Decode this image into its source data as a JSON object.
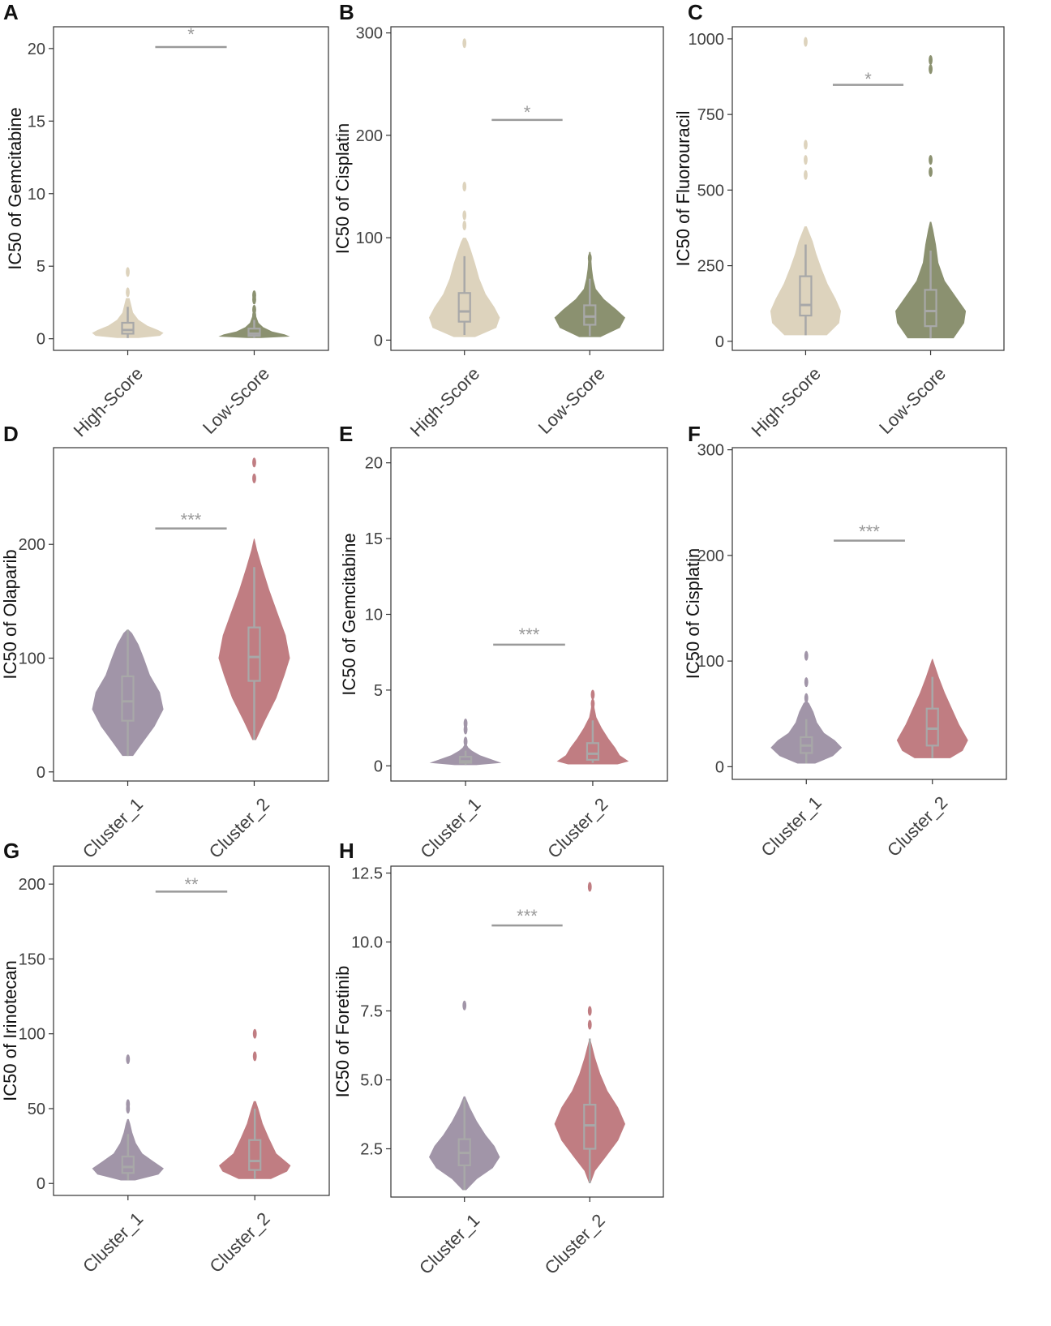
{
  "colors": {
    "high_score": "#ddd3bd",
    "low_score": "#8b9170",
    "cluster_1": "#a195a8",
    "cluster_2": "#c07d82",
    "box": "#a8a8a8",
    "sig": "#9a9a9a"
  },
  "chart_data": [
    {
      "panel": "A",
      "type": "violin",
      "title": "",
      "ylabel": "IC50 of Gemcitabine",
      "xlabel": "",
      "ylim": [
        -0.8,
        21.5
      ],
      "yticks": [
        0,
        5,
        10,
        15,
        20
      ],
      "tick_labels": [
        "0",
        "5",
        "10",
        "15",
        "20"
      ],
      "categories": [
        "High-Score",
        "Low-Score"
      ],
      "significance": "*",
      "sig_y": 20.1,
      "sig_label_y": 21.0,
      "groups": [
        {
          "name": "High-Score",
          "color_key": "high_score",
          "min": 0.05,
          "q1": 0.35,
          "median": 0.6,
          "q3": 1.1,
          "max": 2.2,
          "outliers": [
            3.2,
            4.6
          ],
          "profile": [
            [
              0.05,
              0.3
            ],
            [
              0.2,
              0.9
            ],
            [
              0.4,
              1.0
            ],
            [
              0.6,
              0.85
            ],
            [
              0.9,
              0.55
            ],
            [
              1.3,
              0.3
            ],
            [
              1.8,
              0.15
            ],
            [
              2.3,
              0.1
            ],
            [
              2.8,
              0.05
            ]
          ]
        },
        {
          "name": "Low-Score",
          "color_key": "low_score",
          "min": 0.05,
          "q1": 0.2,
          "median": 0.35,
          "q3": 0.7,
          "max": 1.3,
          "outliers": [
            1.6,
            2.0,
            2.7,
            3.0
          ],
          "profile": [
            [
              0.05,
              0.2
            ],
            [
              0.15,
              1.0
            ],
            [
              0.3,
              0.85
            ],
            [
              0.5,
              0.5
            ],
            [
              0.8,
              0.25
            ],
            [
              1.1,
              0.12
            ],
            [
              1.5,
              0.06
            ],
            [
              1.8,
              0.03
            ]
          ]
        }
      ]
    },
    {
      "panel": "B",
      "type": "violin",
      "title": "",
      "ylabel": "IC50 of Cisplatin",
      "xlabel": "",
      "ylim": [
        -10,
        306
      ],
      "yticks": [
        0,
        100,
        200,
        300
      ],
      "tick_labels": [
        "0",
        "100",
        "200",
        "300"
      ],
      "categories": [
        "High-Score",
        "Low-Score"
      ],
      "significance": "*",
      "sig_y": 215,
      "sig_label_y": 223,
      "groups": [
        {
          "name": "High-Score",
          "color_key": "high_score",
          "min": 5,
          "q1": 18,
          "median": 28,
          "q3": 46,
          "max": 82,
          "outliers": [
            112,
            122,
            150,
            290
          ],
          "profile": [
            [
              3,
              0.3
            ],
            [
              12,
              0.9
            ],
            [
              22,
              1.0
            ],
            [
              32,
              0.85
            ],
            [
              45,
              0.6
            ],
            [
              60,
              0.42
            ],
            [
              75,
              0.3
            ],
            [
              88,
              0.18
            ],
            [
              96,
              0.1
            ],
            [
              100,
              0.04
            ]
          ]
        },
        {
          "name": "Low-Score",
          "color_key": "low_score",
          "min": 4,
          "q1": 15,
          "median": 23,
          "q3": 34,
          "max": 60,
          "outliers": [
            70,
            80
          ],
          "profile": [
            [
              3,
              0.3
            ],
            [
              12,
              0.85
            ],
            [
              22,
              1.0
            ],
            [
              30,
              0.75
            ],
            [
              40,
              0.4
            ],
            [
              50,
              0.17
            ],
            [
              60,
              0.1
            ],
            [
              70,
              0.06
            ],
            [
              80,
              0.04
            ],
            [
              86,
              0.02
            ]
          ]
        }
      ]
    },
    {
      "panel": "C",
      "type": "violin",
      "title": "",
      "ylabel": "IC50 of Fluorouracil",
      "xlabel": "",
      "ylim": [
        -30,
        1040
      ],
      "yticks": [
        0,
        250,
        500,
        750,
        1000
      ],
      "tick_labels": [
        "0",
        "250",
        "500",
        "750",
        "1000"
      ],
      "categories": [
        "High-Score",
        "Low-Score"
      ],
      "significance": "*",
      "sig_y": 848,
      "sig_label_y": 868,
      "groups": [
        {
          "name": "High-Score",
          "color_key": "high_score",
          "min": 20,
          "q1": 85,
          "median": 120,
          "q3": 215,
          "max": 320,
          "outliers": [
            550,
            600,
            650,
            990
          ],
          "profile": [
            [
              20,
              0.6
            ],
            [
              60,
              0.95
            ],
            [
              100,
              1.0
            ],
            [
              140,
              0.85
            ],
            [
              190,
              0.62
            ],
            [
              240,
              0.45
            ],
            [
              290,
              0.3
            ],
            [
              330,
              0.2
            ],
            [
              360,
              0.1
            ],
            [
              380,
              0.03
            ]
          ]
        },
        {
          "name": "Low-Score",
          "color_key": "low_score",
          "min": 10,
          "q1": 50,
          "median": 100,
          "q3": 170,
          "max": 300,
          "outliers": [
            560,
            600,
            900,
            930
          ],
          "profile": [
            [
              10,
              0.65
            ],
            [
              60,
              0.95
            ],
            [
              100,
              1.0
            ],
            [
              150,
              0.7
            ],
            [
              200,
              0.4
            ],
            [
              260,
              0.22
            ],
            [
              320,
              0.15
            ],
            [
              370,
              0.07
            ],
            [
              395,
              0.02
            ]
          ]
        }
      ]
    },
    {
      "panel": "D",
      "type": "violin",
      "title": "",
      "ylabel": "IC50 of Olaparib",
      "xlabel": "",
      "ylim": [
        -8,
        285
      ],
      "yticks": [
        0,
        100,
        200
      ],
      "tick_labels": [
        "0",
        "100",
        "200"
      ],
      "categories": [
        "Cluster_1",
        "Cluster_2"
      ],
      "significance": "***",
      "sig_y": 214,
      "sig_label_y": 222,
      "groups": [
        {
          "name": "Cluster_1",
          "color_key": "cluster_1",
          "min": 14,
          "q1": 45,
          "median": 62,
          "q3": 84,
          "max": 125,
          "outliers": [],
          "profile": [
            [
              14,
              0.15
            ],
            [
              25,
              0.4
            ],
            [
              40,
              0.75
            ],
            [
              55,
              1.0
            ],
            [
              70,
              0.9
            ],
            [
              85,
              0.62
            ],
            [
              100,
              0.45
            ],
            [
              112,
              0.3
            ],
            [
              122,
              0.12
            ],
            [
              125,
              0.02
            ]
          ]
        },
        {
          "name": "Cluster_2",
          "color_key": "cluster_2",
          "min": 28,
          "q1": 80,
          "median": 101,
          "q3": 127,
          "max": 180,
          "outliers": [
            258,
            272
          ],
          "profile": [
            [
              28,
              0.05
            ],
            [
              45,
              0.3
            ],
            [
              65,
              0.62
            ],
            [
              85,
              0.85
            ],
            [
              100,
              1.0
            ],
            [
              120,
              0.88
            ],
            [
              140,
              0.65
            ],
            [
              160,
              0.42
            ],
            [
              180,
              0.22
            ],
            [
              195,
              0.08
            ],
            [
              205,
              0.01
            ]
          ]
        }
      ]
    },
    {
      "panel": "E",
      "type": "violin",
      "title": "",
      "ylabel": "IC50 of Gemcitabine",
      "xlabel": "",
      "ylim": [
        -1,
        21
      ],
      "yticks": [
        0,
        5,
        10,
        15,
        20
      ],
      "tick_labels": [
        "0",
        "5",
        "10",
        "15",
        "20"
      ],
      "categories": [
        "Cluster_1",
        "Cluster_2"
      ],
      "significance": "***",
      "sig_y": 8.0,
      "sig_label_y": 8.7,
      "groups": [
        {
          "name": "Cluster_1",
          "color_key": "cluster_1",
          "min": 0.05,
          "q1": 0.2,
          "median": 0.3,
          "q3": 0.6,
          "max": 1.0,
          "outliers": [
            1.6,
            2.4,
            2.8
          ],
          "profile": [
            [
              0.05,
              0.3
            ],
            [
              0.2,
              1.0
            ],
            [
              0.4,
              0.75
            ],
            [
              0.7,
              0.4
            ],
            [
              1.0,
              0.18
            ],
            [
              1.2,
              0.08
            ],
            [
              1.4,
              0.03
            ]
          ]
        },
        {
          "name": "Cluster_2",
          "color_key": "cluster_2",
          "min": 0.2,
          "q1": 0.4,
          "median": 0.8,
          "q3": 1.5,
          "max": 3.0,
          "outliers": [
            3.3,
            4.1,
            4.7
          ],
          "profile": [
            [
              0.1,
              0.55
            ],
            [
              0.3,
              0.8
            ],
            [
              0.7,
              0.6
            ],
            [
              1.2,
              0.5
            ],
            [
              1.8,
              0.35
            ],
            [
              2.5,
              0.2
            ],
            [
              3.2,
              0.08
            ],
            [
              3.8,
              0.04
            ],
            [
              4.4,
              0.02
            ],
            [
              4.9,
              0.005
            ]
          ]
        }
      ]
    },
    {
      "panel": "F",
      "type": "violin",
      "title": "",
      "ylabel": "IC50 of Cisplatin",
      "xlabel": "",
      "ylim": [
        -12,
        302
      ],
      "yticks": [
        0,
        100,
        200,
        300
      ],
      "tick_labels": [
        "0",
        "100",
        "200",
        "300"
      ],
      "categories": [
        "Cluster_1",
        "Cluster_2"
      ],
      "significance": "***",
      "sig_y": 214,
      "sig_label_y": 223,
      "groups": [
        {
          "name": "Cluster_1",
          "color_key": "cluster_1",
          "min": 3,
          "q1": 13,
          "median": 20,
          "q3": 28,
          "max": 45,
          "outliers": [
            65,
            80,
            105
          ],
          "profile": [
            [
              3,
              0.25
            ],
            [
              10,
              0.75
            ],
            [
              18,
              1.0
            ],
            [
              25,
              0.8
            ],
            [
              32,
              0.5
            ],
            [
              42,
              0.3
            ],
            [
              52,
              0.2
            ],
            [
              60,
              0.08
            ],
            [
              62,
              0.02
            ]
          ]
        },
        {
          "name": "Cluster_2",
          "color_key": "cluster_2",
          "min": 8,
          "q1": 20,
          "median": 36,
          "q3": 55,
          "max": 85,
          "outliers": [],
          "profile": [
            [
              8,
              0.5
            ],
            [
              15,
              0.85
            ],
            [
              25,
              1.0
            ],
            [
              40,
              0.75
            ],
            [
              55,
              0.55
            ],
            [
              70,
              0.35
            ],
            [
              85,
              0.18
            ],
            [
              98,
              0.05
            ],
            [
              102,
              0.01
            ]
          ]
        }
      ]
    },
    {
      "panel": "G",
      "type": "violin",
      "title": "",
      "ylabel": "IC50 of Irinotecan",
      "xlabel": "",
      "ylim": [
        -8,
        212
      ],
      "yticks": [
        0,
        50,
        100,
        150,
        200
      ],
      "tick_labels": [
        "0",
        "50",
        "100",
        "150",
        "200"
      ],
      "categories": [
        "Cluster_1",
        "Cluster_2"
      ],
      "significance": "**",
      "sig_y": 195,
      "sig_label_y": 200,
      "groups": [
        {
          "name": "Cluster_1",
          "color_key": "cluster_1",
          "min": 2,
          "q1": 7,
          "median": 11,
          "q3": 18,
          "max": 33,
          "outliers": [
            50,
            53,
            83
          ],
          "profile": [
            [
              2,
              0.2
            ],
            [
              6,
              0.85
            ],
            [
              10,
              1.0
            ],
            [
              15,
              0.7
            ],
            [
              20,
              0.4
            ],
            [
              27,
              0.22
            ],
            [
              34,
              0.12
            ],
            [
              40,
              0.06
            ],
            [
              43,
              0.02
            ]
          ]
        },
        {
          "name": "Cluster_2",
          "color_key": "cluster_2",
          "min": 3,
          "q1": 9,
          "median": 15,
          "q3": 29,
          "max": 50,
          "outliers": [
            85,
            100
          ],
          "profile": [
            [
              3,
              0.45
            ],
            [
              8,
              0.9
            ],
            [
              12,
              1.0
            ],
            [
              20,
              0.6
            ],
            [
              30,
              0.4
            ],
            [
              40,
              0.22
            ],
            [
              50,
              0.1
            ],
            [
              55,
              0.03
            ]
          ]
        }
      ]
    },
    {
      "panel": "H",
      "type": "violin",
      "title": "",
      "ylabel": "IC50 of Foretinib",
      "xlabel": "",
      "ylim": [
        0.75,
        12.75
      ],
      "yticks": [
        2.5,
        5.0,
        7.5,
        10.0,
        12.5
      ],
      "tick_labels": [
        "2.5",
        "5.0",
        "7.5",
        "10.0",
        "12.5"
      ],
      "categories": [
        "Cluster_1",
        "Cluster_2"
      ],
      "significance": "***",
      "sig_y": 10.6,
      "sig_label_y": 10.95,
      "groups": [
        {
          "name": "Cluster_1",
          "color_key": "cluster_1",
          "min": 1.0,
          "q1": 1.9,
          "median": 2.35,
          "q3": 2.85,
          "max": 4.3,
          "outliers": [
            7.7
          ],
          "profile": [
            [
              1.0,
              0.05
            ],
            [
              1.4,
              0.35
            ],
            [
              1.8,
              0.8
            ],
            [
              2.2,
              1.0
            ],
            [
              2.6,
              0.85
            ],
            [
              3.0,
              0.6
            ],
            [
              3.5,
              0.35
            ],
            [
              4.0,
              0.15
            ],
            [
              4.4,
              0.02
            ]
          ]
        },
        {
          "name": "Cluster_2",
          "color_key": "cluster_2",
          "min": 1.25,
          "q1": 2.5,
          "median": 3.35,
          "q3": 4.1,
          "max": 6.5,
          "outliers": [
            7.0,
            7.5,
            12.0
          ],
          "profile": [
            [
              1.25,
              0.02
            ],
            [
              1.7,
              0.15
            ],
            [
              2.2,
              0.45
            ],
            [
              2.8,
              0.8
            ],
            [
              3.4,
              1.0
            ],
            [
              4.0,
              0.8
            ],
            [
              4.6,
              0.5
            ],
            [
              5.2,
              0.3
            ],
            [
              5.8,
              0.15
            ],
            [
              6.3,
              0.05
            ],
            [
              6.5,
              0.01
            ]
          ]
        }
      ]
    }
  ]
}
